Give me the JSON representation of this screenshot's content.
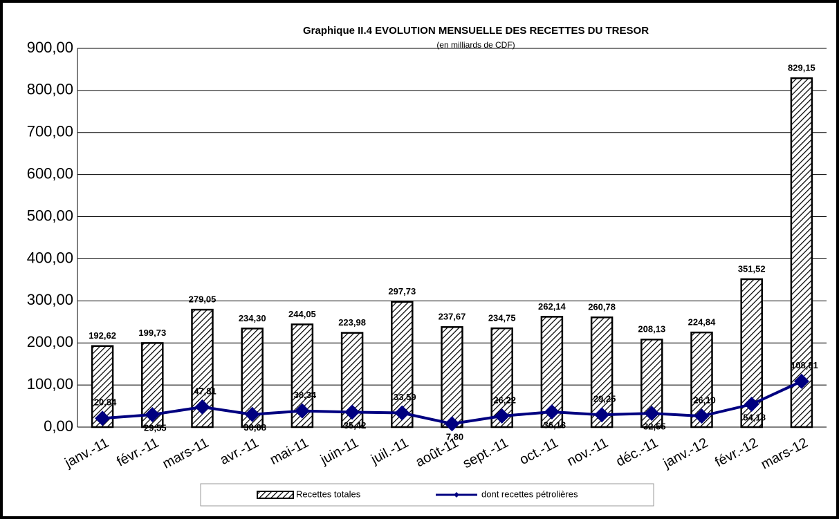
{
  "chart_data": {
    "type": "bar-line",
    "title": "Graphique II.4  EVOLUTION MENSUELLE DES RECETTES DU TRESOR",
    "subtitle": "(en milliards de CDF)",
    "categories": [
      "janv.-11",
      "févr.-11",
      "mars-11",
      "avr.-11",
      "mai-11",
      "juin-11",
      "juil.-11",
      "août-11",
      "sept.-11",
      "oct.-11",
      "nov.-11",
      "déc.-11",
      "janv.-12",
      "févr.-12",
      "mars-12"
    ],
    "series": [
      {
        "name": "Recettes totales",
        "type": "bar",
        "color": "#000000",
        "values": [
          192.62,
          199.73,
          279.05,
          234.3,
          244.05,
          223.98,
          297.73,
          237.67,
          234.75,
          262.14,
          260.78,
          208.13,
          224.84,
          351.52,
          829.15
        ],
        "value_labels": [
          "192,62",
          "199,73",
          "279,05",
          "234,30",
          "244,05",
          "223,98",
          "297,73",
          "237,67",
          "234,75",
          "262,14",
          "260,78",
          "208,13",
          "224,84",
          "351,52",
          "829,15"
        ]
      },
      {
        "name": "dont recettes pétrolières",
        "type": "line",
        "color": "#000080",
        "values": [
          20.84,
          29.55,
          47.81,
          30.08,
          38.34,
          35.42,
          33.59,
          7.8,
          26.22,
          36.13,
          29.25,
          32.55,
          26.1,
          54.18,
          108.81
        ],
        "value_labels": [
          "20,84",
          "29,55",
          "47,81",
          "30,08",
          "38,34",
          "35,42",
          "33,59",
          "7,80",
          "26,22",
          "36,13",
          "29,25",
          "32,55",
          "26,10",
          "54,18",
          "108,81"
        ]
      }
    ],
    "ylim": [
      0,
      900
    ],
    "yticks": [
      {
        "value": 0,
        "label": "0,00"
      },
      {
        "value": 100,
        "label": "100,00"
      },
      {
        "value": 200,
        "label": "200,00"
      },
      {
        "value": 300,
        "label": "300,00"
      },
      {
        "value": 400,
        "label": "400,00"
      },
      {
        "value": 500,
        "label": "500,00"
      },
      {
        "value": 600,
        "label": "600,00"
      },
      {
        "value": 700,
        "label": "700,00"
      },
      {
        "value": 800,
        "label": "800,00"
      },
      {
        "value": 900,
        "label": "900,00"
      }
    ],
    "grid": true
  }
}
